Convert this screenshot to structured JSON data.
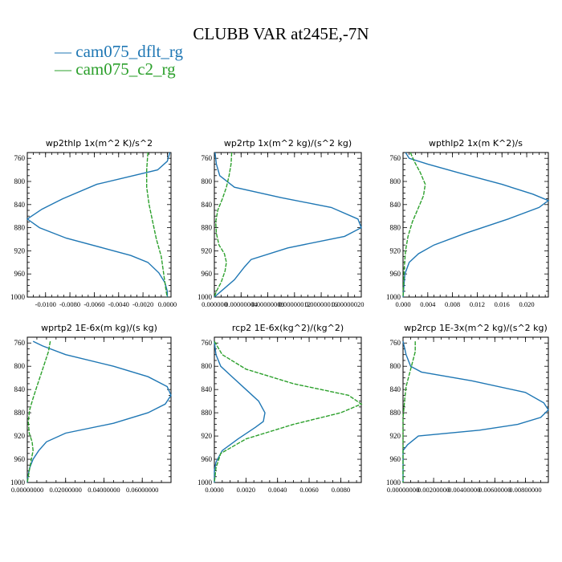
{
  "title": "CLUBB VAR at245E,-7N",
  "colors": {
    "dflt": "#1f77b4",
    "c2": "#2ca02c"
  },
  "legend": [
    {
      "label": "cam075_dflt_rg",
      "color": "#1f77b4"
    },
    {
      "label": "cam075_c2_rg",
      "color": "#2ca02c"
    }
  ],
  "chart_data": [
    {
      "type": "line",
      "title": "wp2thlp   1x(m^2 K)/s^2",
      "xlim": [
        -0.0115,
        0.0003
      ],
      "ylim": [
        1000,
        750
      ],
      "xticks": [
        -0.01,
        -0.008,
        -0.006,
        -0.004,
        -0.002,
        0
      ],
      "xtick_labels": [
        "-0.0100",
        "-0.0080",
        "-0.0060",
        "-0.0040",
        "-0.0020",
        "0.0000"
      ],
      "yticks": [
        760,
        800,
        840,
        880,
        920,
        960,
        1000
      ],
      "series": [
        {
          "name": "cam075_dflt_rg",
          "points": [
            [
              0.0002,
              750
            ],
            [
              0.0,
              765
            ],
            [
              -0.0008,
              780
            ],
            [
              -0.0058,
              805
            ],
            [
              -0.0086,
              830
            ],
            [
              -0.0103,
              848
            ],
            [
              -0.0115,
              865
            ],
            [
              -0.0105,
              880
            ],
            [
              -0.0083,
              898
            ],
            [
              -0.0053,
              915
            ],
            [
              -0.003,
              928
            ],
            [
              -0.0016,
              940
            ],
            [
              -0.0007,
              958
            ],
            [
              -0.0002,
              975
            ],
            [
              0.0,
              990
            ],
            [
              0.0,
              1000
            ]
          ]
        },
        {
          "name": "cam075_c2_rg",
          "points": [
            [
              -0.0016,
              750
            ],
            [
              -0.0017,
              780
            ],
            [
              -0.0017,
              810
            ],
            [
              -0.0015,
              840
            ],
            [
              -0.0012,
              870
            ],
            [
              -0.0009,
              900
            ],
            [
              -0.0005,
              930
            ],
            [
              -0.0003,
              960
            ],
            [
              -0.0001,
              990
            ],
            [
              0.0,
              1000
            ]
          ]
        }
      ]
    },
    {
      "type": "line",
      "title": "wp2rtp   1x(m^2 kg)/(s^2 kg)",
      "xlim": [
        0,
        2.2e-07
      ],
      "ylim": [
        1000,
        750
      ],
      "xticks": [
        0,
        4e-08,
        8e-08,
        1.2e-07,
        1.6e-07,
        2e-07
      ],
      "xtick_labels": [
        "0.000000",
        "0.00000004",
        "0.00000008",
        "0.00000012",
        "0.00000016",
        "0.00000020"
      ],
      "yticks": [
        760,
        800,
        840,
        880,
        920,
        960,
        1000
      ],
      "series": [
        {
          "name": "cam075_dflt_rg",
          "points": [
            [
              1e-09,
              750
            ],
            [
              3e-09,
              770
            ],
            [
              8e-09,
              790
            ],
            [
              3e-08,
              810
            ],
            [
              1e-07,
              828
            ],
            [
              1.75e-07,
              845
            ],
            [
              2.15e-07,
              865
            ],
            [
              2.2e-07,
              880
            ],
            [
              1.95e-07,
              895
            ],
            [
              1.1e-07,
              915
            ],
            [
              5.5e-08,
              935
            ],
            [
              4.5e-08,
              948
            ],
            [
              3e-08,
              970
            ],
            [
              1e-08,
              990
            ],
            [
              0.0,
              1000
            ]
          ]
        },
        {
          "name": "cam075_c2_rg",
          "points": [
            [
              2.6e-08,
              750
            ],
            [
              2.5e-08,
              770
            ],
            [
              2.2e-08,
              790
            ],
            [
              1.8e-08,
              810
            ],
            [
              1.2e-08,
              830
            ],
            [
              5e-09,
              850
            ],
            [
              2e-09,
              870
            ],
            [
              3e-09,
              890
            ],
            [
              7e-09,
              910
            ],
            [
              1.5e-08,
              925
            ],
            [
              1.8e-08,
              940
            ],
            [
              1.6e-08,
              955
            ],
            [
              1e-08,
              975
            ],
            [
              3e-09,
              990
            ],
            [
              0.0,
              1000
            ]
          ]
        }
      ]
    },
    {
      "type": "line",
      "title": "wpthlp2   1x(m K^2)/s",
      "xlim": [
        0,
        0.0235
      ],
      "ylim": [
        1000,
        750
      ],
      "xticks": [
        0,
        0.004,
        0.008,
        0.012,
        0.016,
        0.02
      ],
      "xtick_labels": [
        "0.000",
        "0.004",
        "0.008",
        "0.012",
        "0.016",
        "0.020"
      ],
      "yticks": [
        760,
        800,
        840,
        880,
        920,
        960,
        1000
      ],
      "series": [
        {
          "name": "cam075_dflt_rg",
          "points": [
            [
              0.0004,
              750
            ],
            [
              0.001,
              760
            ],
            [
              0.004,
              770
            ],
            [
              0.009,
              785
            ],
            [
              0.016,
              805
            ],
            [
              0.021,
              822
            ],
            [
              0.0235,
              833
            ],
            [
              0.022,
              845
            ],
            [
              0.017,
              865
            ],
            [
              0.01,
              890
            ],
            [
              0.005,
              910
            ],
            [
              0.0025,
              925
            ],
            [
              0.001,
              940
            ],
            [
              0.0003,
              960
            ],
            [
              0.0,
              1000
            ]
          ]
        },
        {
          "name": "cam075_c2_rg",
          "points": [
            [
              0.0012,
              750
            ],
            [
              0.0018,
              765
            ],
            [
              0.0028,
              785
            ],
            [
              0.0036,
              805
            ],
            [
              0.0033,
              825
            ],
            [
              0.0025,
              845
            ],
            [
              0.0015,
              870
            ],
            [
              0.0008,
              895
            ],
            [
              0.0004,
              920
            ],
            [
              0.0002,
              950
            ],
            [
              0.0,
              1000
            ]
          ]
        }
      ]
    },
    {
      "type": "line",
      "title": "wprtp2   1E-6x(m kg)/(s kg)",
      "xlim": [
        0,
        0.075
      ],
      "ylim": [
        1000,
        750
      ],
      "xticks": [
        0,
        0.02,
        0.04,
        0.06
      ],
      "xtick_labels": [
        "0.00000000",
        "0.02000000",
        "0.04000000",
        "0.06000000"
      ],
      "yticks": [
        760,
        800,
        840,
        880,
        920,
        960,
        1000
      ],
      "series": [
        {
          "name": "cam075_dflt_rg",
          "points": [
            [
              0.003,
              757
            ],
            [
              0.008,
              765
            ],
            [
              0.02,
              780
            ],
            [
              0.045,
              800
            ],
            [
              0.063,
              818
            ],
            [
              0.073,
              835
            ],
            [
              0.075,
              850
            ],
            [
              0.072,
              865
            ],
            [
              0.063,
              880
            ],
            [
              0.045,
              898
            ],
            [
              0.02,
              915
            ],
            [
              0.01,
              930
            ],
            [
              0.006,
              945
            ],
            [
              0.003,
              960
            ],
            [
              0.0012,
              975
            ],
            [
              0.0003,
              990
            ],
            [
              0.0,
              1000
            ]
          ]
        },
        {
          "name": "cam075_c2_rg",
          "points": [
            [
              0.012,
              757
            ],
            [
              0.011,
              775
            ],
            [
              0.009,
              795
            ],
            [
              0.007,
              815
            ],
            [
              0.005,
              835
            ],
            [
              0.003,
              855
            ],
            [
              0.0012,
              875
            ],
            [
              0.0005,
              895
            ],
            [
              0.001,
              915
            ],
            [
              0.0025,
              930
            ],
            [
              0.003,
              945
            ],
            [
              0.002,
              962
            ],
            [
              0.001,
              980
            ],
            [
              0.0,
              1000
            ]
          ]
        }
      ]
    },
    {
      "type": "line",
      "title": "rcp2   1E-6x(kg^2)/(kg^2)",
      "xlim": [
        0,
        0.0093
      ],
      "ylim": [
        1000,
        750
      ],
      "xticks": [
        0,
        0.002,
        0.004,
        0.006,
        0.008
      ],
      "xtick_labels": [
        "0.0000",
        "0.0020",
        "0.0040",
        "0.0060",
        "0.0080"
      ],
      "yticks": [
        760,
        800,
        840,
        880,
        920,
        960,
        1000
      ],
      "series": [
        {
          "name": "cam075_dflt_rg",
          "points": [
            [
              0.0,
              757
            ],
            [
              0.0001,
              780
            ],
            [
              0.0004,
              800
            ],
            [
              0.001,
              815
            ],
            [
              0.002,
              840
            ],
            [
              0.0028,
              860
            ],
            [
              0.0032,
              880
            ],
            [
              0.0031,
              895
            ],
            [
              0.0026,
              905
            ],
            [
              0.0015,
              925
            ],
            [
              0.0005,
              945
            ],
            [
              0.0001,
              965
            ],
            [
              0.0,
              980
            ],
            [
              0.0,
              1000
            ]
          ]
        },
        {
          "name": "cam075_c2_rg",
          "points": [
            [
              0.0,
              757
            ],
            [
              0.0005,
              780
            ],
            [
              0.002,
              805
            ],
            [
              0.005,
              830
            ],
            [
              0.0085,
              850
            ],
            [
              0.0093,
              865
            ],
            [
              0.008,
              880
            ],
            [
              0.005,
              900
            ],
            [
              0.002,
              925
            ],
            [
              0.0004,
              950
            ],
            [
              0.0001,
              975
            ],
            [
              0.0,
              1000
            ]
          ]
        }
      ]
    },
    {
      "type": "line",
      "title": "wp2rcp   1E-3x(m^2 kg)/(s^2 kg)",
      "xlim": [
        0,
        0.0095
      ],
      "ylim": [
        1000,
        750
      ],
      "xticks": [
        0,
        0.002,
        0.004,
        0.006,
        0.008
      ],
      "xtick_labels": [
        "0.00000000",
        "0.00200000",
        "0.00400000",
        "0.00600000",
        "0.00800000"
      ],
      "yticks": [
        760,
        800,
        840,
        880,
        920,
        960,
        1000
      ],
      "series": [
        {
          "name": "cam075_dflt_rg",
          "points": [
            [
              0.0,
              757
            ],
            [
              0.0002,
              780
            ],
            [
              0.0005,
              800
            ],
            [
              0.0012,
              810
            ],
            [
              0.0045,
              825
            ],
            [
              0.008,
              845
            ],
            [
              0.0092,
              863
            ],
            [
              0.0095,
              875
            ],
            [
              0.009,
              888
            ],
            [
              0.0075,
              900
            ],
            [
              0.005,
              910
            ],
            [
              0.001,
              920
            ],
            [
              0.0003,
              935
            ],
            [
              0.0,
              945
            ],
            [
              0.0,
              1000
            ]
          ]
        },
        {
          "name": "cam075_c2_rg",
          "points": [
            [
              0.0008,
              757
            ],
            [
              0.0008,
              775
            ],
            [
              0.0006,
              795
            ],
            [
              0.0004,
              815
            ],
            [
              0.0002,
              835
            ],
            [
              0.0001,
              860
            ],
            [
              0.0,
              890
            ],
            [
              0.0,
              1000
            ]
          ]
        }
      ]
    }
  ]
}
